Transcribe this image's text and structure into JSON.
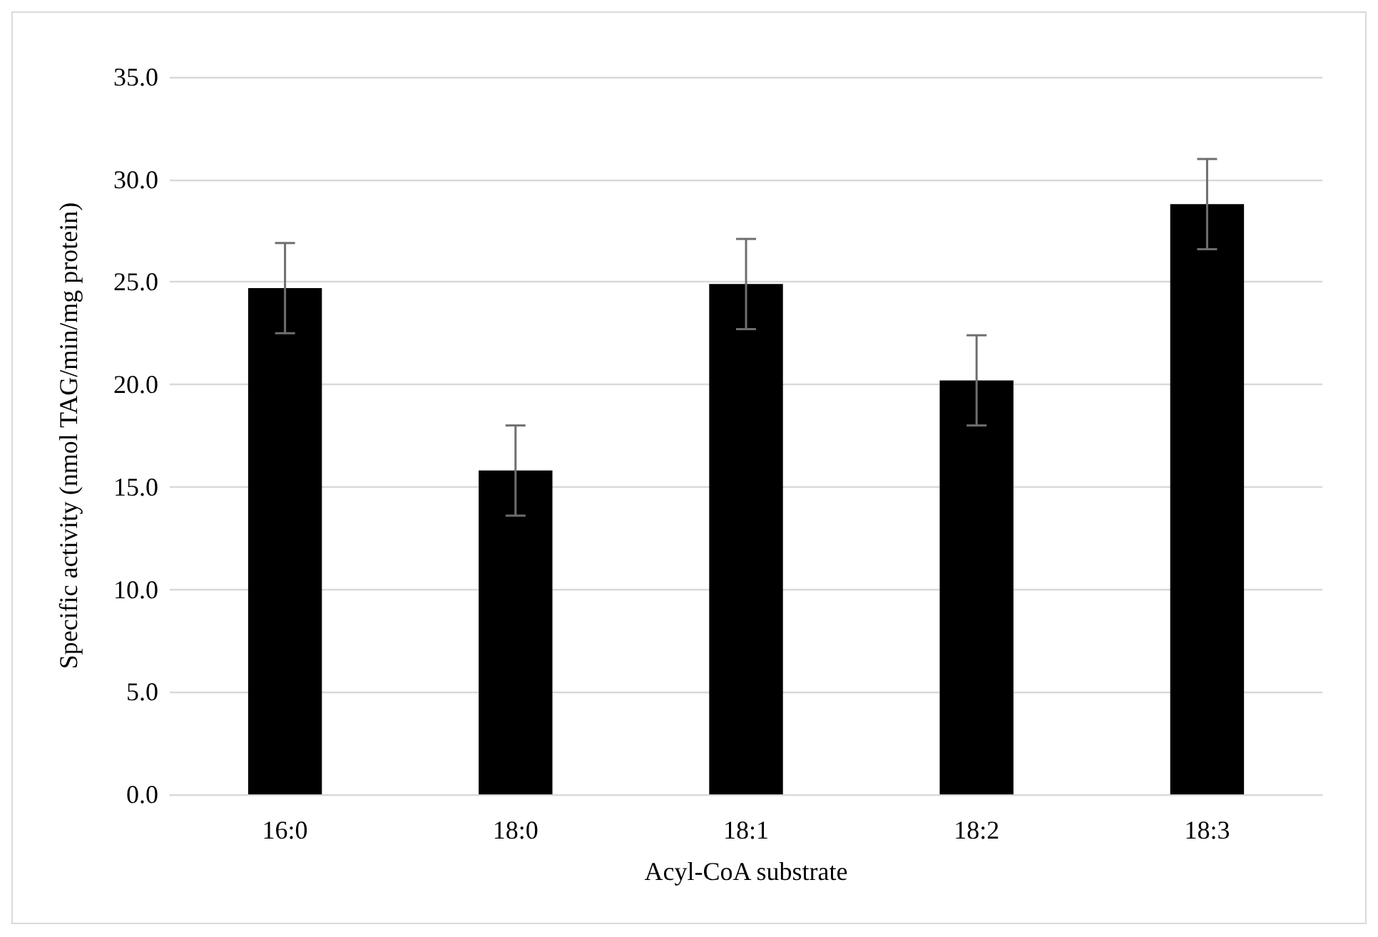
{
  "chart_data": {
    "type": "bar",
    "xlabel": "Acyl-CoA substrate",
    "ylabel": "Specific activity (nmol TAG/min/mg protein)",
    "categories": [
      "16:0",
      "18:0",
      "18:1",
      "18:2",
      "18:3"
    ],
    "values": [
      24.7,
      15.8,
      24.9,
      20.2,
      28.8
    ],
    "errors": [
      2.2,
      2.2,
      2.2,
      2.2,
      2.2
    ],
    "color": "#000000",
    "ylim": [
      0,
      35
    ],
    "yticks": [
      {
        "value": 0,
        "label": "0.0"
      },
      {
        "value": 5,
        "label": "5.0"
      },
      {
        "value": 10,
        "label": "10.0"
      },
      {
        "value": 15,
        "label": "15.0"
      },
      {
        "value": 20,
        "label": "20.0"
      },
      {
        "value": 25,
        "label": "25.0"
      },
      {
        "value": 30,
        "label": "30.0"
      },
      {
        "value": 35,
        "label": "35.0"
      }
    ],
    "grid": "y"
  }
}
